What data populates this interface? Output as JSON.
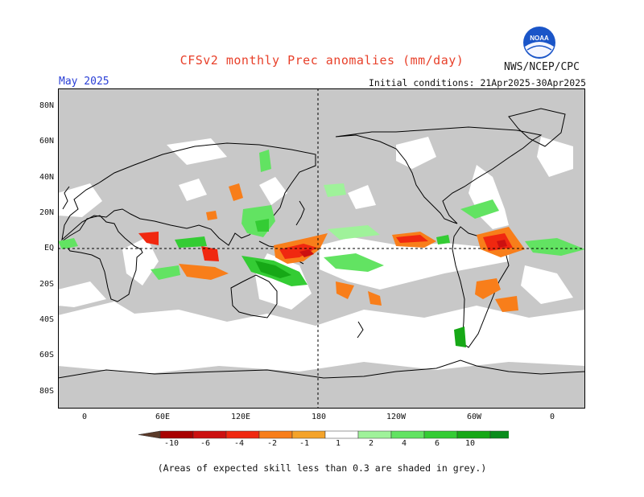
{
  "header": {
    "title": "CFSv2 monthly Prec anomalies (mm/day)",
    "org": "NWS/NCEP/CPC",
    "logo_text": "NOAA",
    "month": "May 2025",
    "initial_conditions": "Initial conditions: 21Apr2025-30Apr2025"
  },
  "axes": {
    "lat_labels": [
      "80N",
      "60N",
      "40N",
      "20N",
      "EQ",
      "20S",
      "40S",
      "60S",
      "80S"
    ],
    "lon_labels": [
      "0",
      "60E",
      "120E",
      "180",
      "120W",
      "60W",
      "0"
    ]
  },
  "colorbar": {
    "labels": [
      "-10",
      "-6",
      "-4",
      "-2",
      "-1",
      "1",
      "2",
      "4",
      "6",
      "10"
    ],
    "colors": [
      "#5b3a29",
      "#a80000",
      "#cc1010",
      "#f02810",
      "#f87e1a",
      "#f4a32a",
      "#ffffff",
      "#9ff29a",
      "#62e362",
      "#34cc34",
      "#16a816",
      "#0a8c1c",
      "#2a78e0"
    ]
  },
  "footer": "(Areas of expected skill less than 0.3 are shaded in grey.)",
  "colors": {
    "low_skill": "#c8c8c8",
    "title": "#e8402a",
    "month": "#2a3fd6"
  }
}
